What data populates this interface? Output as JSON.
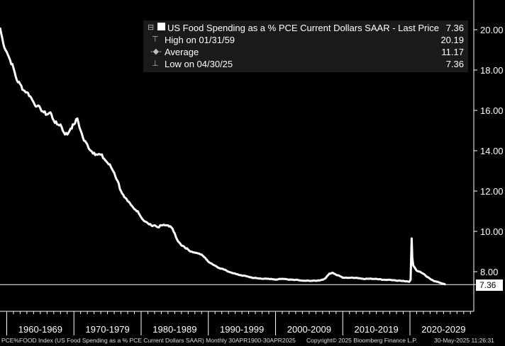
{
  "legend": {
    "series_label": "US Food Spending as a % PCE Current Dollars SAAR - Last Price",
    "last_price": "7.36",
    "high_label": "High on 01/31/59",
    "high_value": "20.19",
    "average_label": "Average",
    "average_value": "11.17",
    "low_label": "Low on 04/30/25",
    "low_value": "7.36"
  },
  "last_tag": "7.36",
  "footer": {
    "ticker": "PCE%FOOD Index (US Food Spending as a % PCE Current Dollars SAAR)  Monthly 30APR1900-30APR2025",
    "copyright": "Copyright© 2025 Bloomberg Finance L.P.",
    "timestamp": "30-May-2025 11:26:31"
  },
  "colors": {
    "background": "#000000",
    "line": "#ffffff",
    "grid": "#ffffff"
  },
  "chart_data": {
    "type": "line",
    "title": "US Food Spending as a % PCE Current Dollars SAAR",
    "ylim": [
      6.0,
      22.0
    ],
    "yticks": [
      "8.00",
      "10.00",
      "12.00",
      "14.00",
      "16.00",
      "18.00",
      "20.00"
    ],
    "ytick_values": [
      8,
      10,
      12,
      14,
      16,
      18,
      20
    ],
    "xticks": [
      "1960-1969",
      "1970-1979",
      "1980-1989",
      "1990-1999",
      "2000-2009",
      "2010-2019",
      "2020-2029"
    ],
    "xlim": [
      1959.0,
      2029.5
    ],
    "reference_line": 7.36,
    "series": [
      {
        "name": "US Food Spending as a % PCE Current Dollars SAAR",
        "x": [
          1959.0,
          1959.5,
          1960.0,
          1960.5,
          1961.0,
          1961.5,
          1962.0,
          1962.5,
          1963.0,
          1963.5,
          1964.0,
          1964.5,
          1965.0,
          1965.5,
          1966.0,
          1966.5,
          1967.0,
          1967.5,
          1968.0,
          1968.5,
          1969.0,
          1969.5,
          1970.0,
          1970.5,
          1971.0,
          1971.5,
          1972.0,
          1972.5,
          1973.0,
          1973.5,
          1974.0,
          1974.5,
          1975.0,
          1975.5,
          1976.0,
          1976.5,
          1977.0,
          1977.5,
          1978.0,
          1978.5,
          1979.0,
          1979.5,
          1980.0,
          1980.5,
          1981.0,
          1981.5,
          1982.0,
          1982.5,
          1983.0,
          1983.5,
          1984.0,
          1984.5,
          1985.0,
          1985.5,
          1986.0,
          1986.5,
          1987.0,
          1987.5,
          1988.0,
          1988.5,
          1989.0,
          1989.5,
          1990.0,
          1990.5,
          1991.0,
          1991.5,
          1992.0,
          1992.5,
          1993.0,
          1993.5,
          1994.0,
          1994.5,
          1995.0,
          1995.5,
          1996.0,
          1996.5,
          1997.0,
          1998.0,
          1999.0,
          2000.0,
          2001.0,
          2002.0,
          2003.0,
          2004.0,
          2005.0,
          2006.0,
          2007.0,
          2007.5,
          2008.0,
          2008.5,
          2009.0,
          2009.5,
          2010.0,
          2011.0,
          2012.0,
          2013.0,
          2014.0,
          2015.0,
          2016.0,
          2017.0,
          2018.0,
          2019.0,
          2019.9,
          2020.1,
          2020.25,
          2020.35,
          2020.5,
          2020.8,
          2021.0,
          2021.5,
          2022.0,
          2022.5,
          2023.0,
          2023.5,
          2024.0,
          2024.5,
          2025.0,
          2025.3
        ],
        "values": [
          20.1,
          19.3,
          18.9,
          18.5,
          18.1,
          17.5,
          17.3,
          17.0,
          16.9,
          16.7,
          16.4,
          16.2,
          16.1,
          15.9,
          15.8,
          15.9,
          15.5,
          15.3,
          15.3,
          14.9,
          14.8,
          15.1,
          15.3,
          15.6,
          15.0,
          14.5,
          14.3,
          14.0,
          13.9,
          13.8,
          13.8,
          13.6,
          13.4,
          13.2,
          12.9,
          12.5,
          12.0,
          11.7,
          11.5,
          11.3,
          11.1,
          11.0,
          10.7,
          10.5,
          10.4,
          10.3,
          10.3,
          10.2,
          10.3,
          10.3,
          10.3,
          10.2,
          9.9,
          9.5,
          9.3,
          9.2,
          9.1,
          9.0,
          8.95,
          8.9,
          8.85,
          8.7,
          8.5,
          8.4,
          8.3,
          8.2,
          8.15,
          8.1,
          8.0,
          7.95,
          7.9,
          7.85,
          7.8,
          7.8,
          7.75,
          7.7,
          7.7,
          7.65,
          7.65,
          7.6,
          7.65,
          7.6,
          7.6,
          7.55,
          7.55,
          7.55,
          7.6,
          7.7,
          7.9,
          7.95,
          7.85,
          7.8,
          7.7,
          7.7,
          7.7,
          7.65,
          7.65,
          7.65,
          7.6,
          7.6,
          7.55,
          7.55,
          7.5,
          7.6,
          9.65,
          8.7,
          8.3,
          8.15,
          8.05,
          8.0,
          7.9,
          7.75,
          7.65,
          7.55,
          7.5,
          7.45,
          7.4,
          7.36
        ]
      }
    ]
  }
}
